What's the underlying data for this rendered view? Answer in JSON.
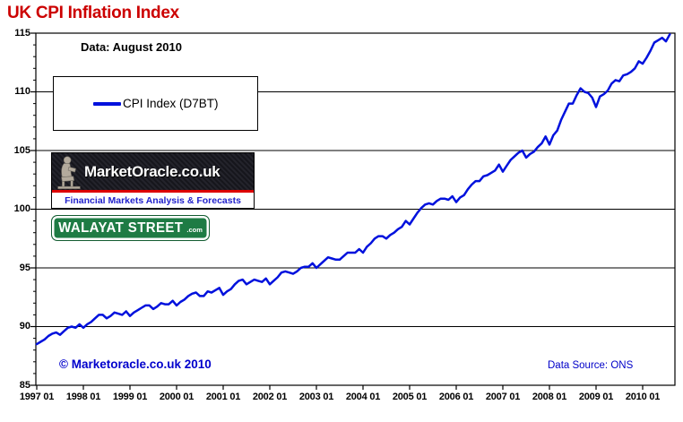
{
  "page": {
    "title": "UK CPI Inflation Index"
  },
  "annotations": {
    "data_note": "Data: August 2010",
    "copyright": "© Marketoracle.co.uk  2010",
    "data_source": "Data Source: ONS"
  },
  "legend": {
    "label": "CPI Index (D7BT)"
  },
  "logos": {
    "marketoracle": {
      "title": "MarketOracle.co.uk",
      "tagline": "Financial Markets Analysis & Forecasts"
    },
    "walayat": {
      "name": "WALAYAT STREET",
      "suffix": ".com"
    }
  },
  "colors": {
    "title": "#cc0000",
    "line": "#0011dd",
    "grid": "#000000",
    "blue_text": "#0000cc"
  },
  "chart_data": {
    "type": "line",
    "title": "UK CPI Inflation Index",
    "xlabel": "",
    "ylabel": "",
    "ylim": [
      85,
      115
    ],
    "y_ticks": [
      85,
      90,
      95,
      100,
      105,
      110,
      115
    ],
    "y_minor_tick_step": 1,
    "grid_values": [
      90,
      95,
      100,
      105,
      110
    ],
    "grid": "horizontal-major",
    "legend_position": "top-left",
    "x_tick_labels": [
      "1997 01",
      "1998 01",
      "1999 01",
      "2000 01",
      "2001 01",
      "2002 01",
      "2003 01",
      "2004 01",
      "2005 01",
      "2006 01",
      "2007 01",
      "2008 01",
      "2009 01",
      "2010 01"
    ],
    "series": [
      {
        "name": "CPI Index (D7BT)",
        "start": "1997-01",
        "end": "2010-08",
        "frequency": "monthly",
        "values": [
          88.5,
          88.7,
          88.9,
          89.2,
          89.4,
          89.5,
          89.3,
          89.6,
          89.9,
          90.0,
          89.9,
          90.2,
          89.9,
          90.2,
          90.4,
          90.7,
          91.0,
          91.0,
          90.7,
          90.9,
          91.2,
          91.1,
          91.0,
          91.3,
          90.9,
          91.2,
          91.4,
          91.6,
          91.8,
          91.8,
          91.5,
          91.7,
          92.0,
          91.9,
          91.9,
          92.2,
          91.8,
          92.1,
          92.3,
          92.6,
          92.8,
          92.9,
          92.6,
          92.6,
          93.0,
          92.9,
          93.1,
          93.3,
          92.7,
          93.0,
          93.2,
          93.6,
          93.9,
          94.0,
          93.6,
          93.8,
          94.0,
          93.9,
          93.8,
          94.1,
          93.6,
          93.9,
          94.2,
          94.6,
          94.7,
          94.6,
          94.5,
          94.7,
          95.0,
          95.1,
          95.1,
          95.4,
          95.0,
          95.3,
          95.6,
          95.9,
          95.8,
          95.7,
          95.7,
          96.0,
          96.3,
          96.3,
          96.3,
          96.6,
          96.3,
          96.8,
          97.1,
          97.5,
          97.7,
          97.7,
          97.5,
          97.8,
          98.0,
          98.3,
          98.5,
          99.0,
          98.7,
          99.2,
          99.7,
          100.1,
          100.4,
          100.5,
          100.4,
          100.7,
          100.9,
          100.9,
          100.8,
          101.1,
          100.6,
          101.0,
          101.2,
          101.7,
          102.1,
          102.4,
          102.4,
          102.8,
          102.9,
          103.1,
          103.3,
          103.8,
          103.2,
          103.7,
          104.2,
          104.5,
          104.8,
          105.0,
          104.4,
          104.7,
          104.9,
          105.3,
          105.6,
          106.2,
          105.5,
          106.3,
          106.7,
          107.6,
          108.3,
          109.0,
          109.0,
          109.7,
          110.3,
          110.0,
          109.9,
          109.5,
          108.7,
          109.6,
          109.8,
          110.1,
          110.7,
          111.0,
          110.9,
          111.4,
          111.5,
          111.7,
          112.0,
          112.6,
          112.4,
          112.9,
          113.5,
          114.2,
          114.4,
          114.6,
          114.3,
          114.9
        ]
      }
    ]
  }
}
